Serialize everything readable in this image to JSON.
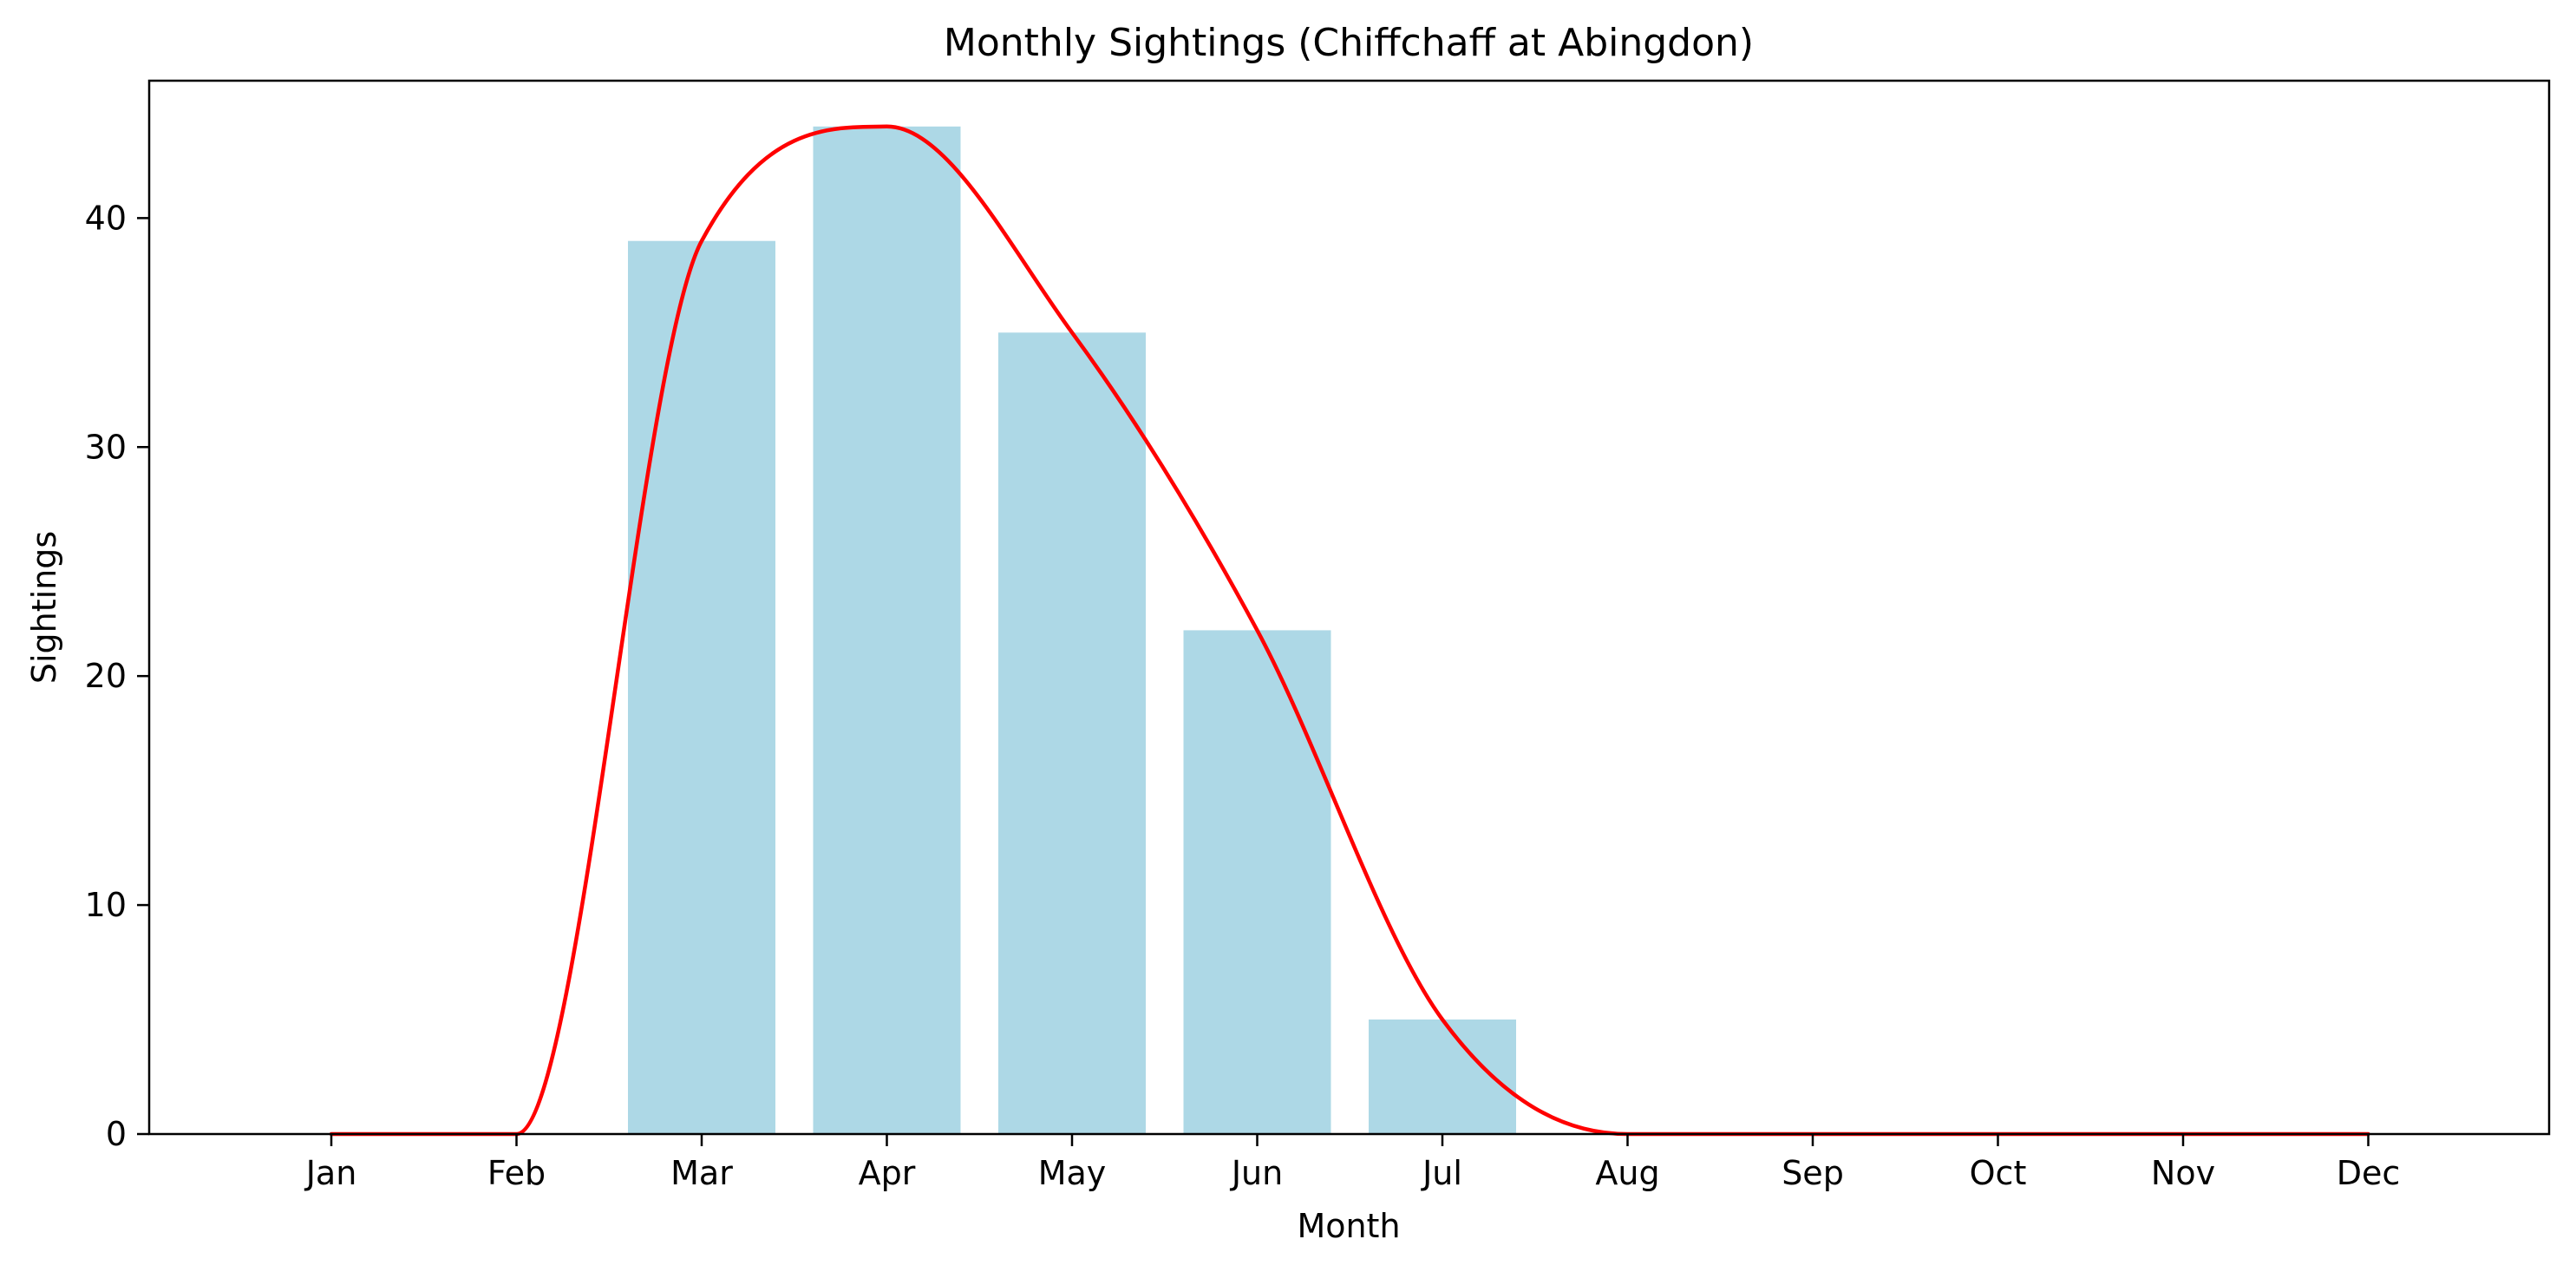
{
  "chart_data": {
    "type": "bar",
    "title": "Monthly Sightings (Chiffchaff at Abingdon)",
    "xlabel": "Month",
    "ylabel": "Sightings",
    "categories": [
      "Jan",
      "Feb",
      "Mar",
      "Apr",
      "May",
      "Jun",
      "Jul",
      "Aug",
      "Sep",
      "Oct",
      "Nov",
      "Dec"
    ],
    "values": [
      0,
      0,
      39,
      44,
      35,
      22,
      5,
      0,
      0,
      0,
      0,
      0
    ],
    "ylim": [
      0,
      46
    ],
    "yticks": [
      0,
      10,
      20,
      30,
      40
    ],
    "grid": false,
    "legend": "none",
    "bar_color": "#add8e6",
    "curve": {
      "type": "smoothed line",
      "color": "#ff0000",
      "values": [
        0,
        0,
        39,
        44,
        35,
        22,
        5,
        0,
        0,
        0,
        0,
        0
      ]
    }
  }
}
